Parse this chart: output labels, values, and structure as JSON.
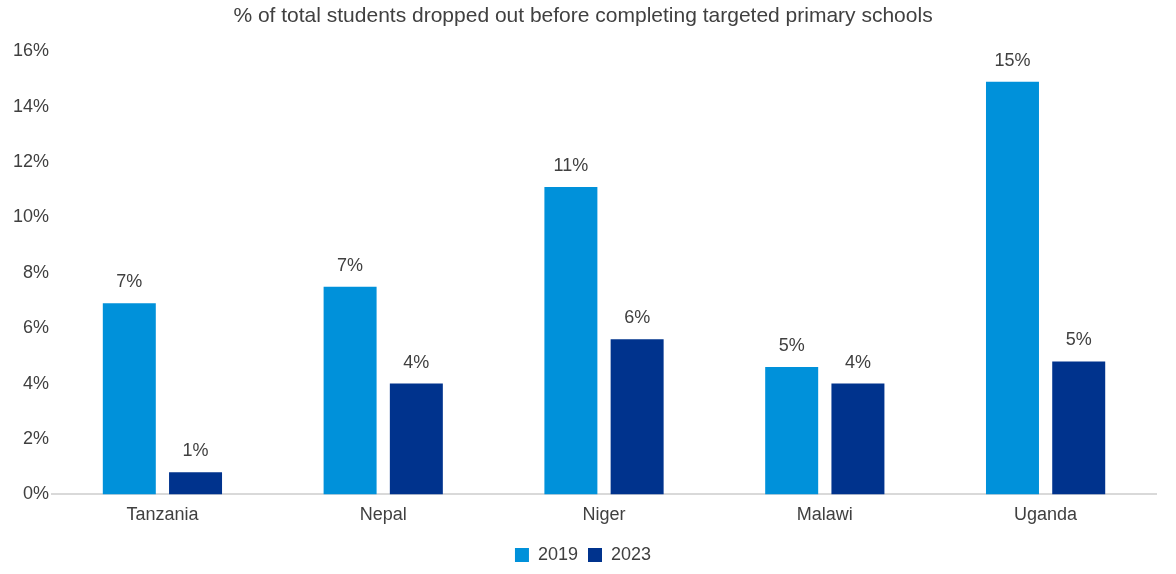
{
  "chart_data": {
    "type": "bar",
    "title": "% of total students dropped out before completing targeted primary schools",
    "categories": [
      "Tanzania",
      "Nepal",
      "Niger",
      "Malawi",
      "Uganda"
    ],
    "series": [
      {
        "name": "2019",
        "color": "#0091da",
        "values": [
          6.9,
          7.5,
          11.1,
          4.6,
          14.9
        ],
        "value_labels": [
          "7%",
          "7%",
          "11%",
          "5%",
          "15%"
        ]
      },
      {
        "name": "2023",
        "color": "#00338d",
        "values": [
          0.8,
          4.0,
          5.6,
          4.0,
          4.8
        ],
        "value_labels": [
          "1%",
          "4%",
          "6%",
          "4%",
          "5%"
        ]
      }
    ],
    "ylim": [
      0,
      16
    ],
    "yticks": [
      {
        "value": 0,
        "label": "0%"
      },
      {
        "value": 2,
        "label": "2%"
      },
      {
        "value": 4,
        "label": "4%"
      },
      {
        "value": 6,
        "label": "6%"
      },
      {
        "value": 8,
        "label": "8%"
      },
      {
        "value": 10,
        "label": "10%"
      },
      {
        "value": 12,
        "label": "12%"
      },
      {
        "value": 14,
        "label": "14%"
      },
      {
        "value": 16,
        "label": "16%"
      }
    ],
    "grid": false,
    "legend": "bottom"
  }
}
